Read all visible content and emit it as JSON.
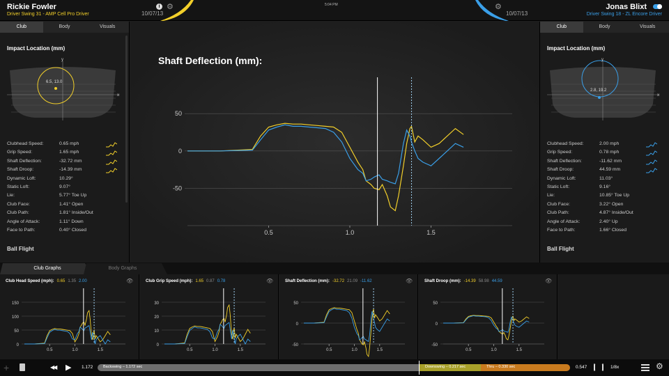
{
  "header": {
    "left_name": "Rickie Fowler",
    "left_swing": "Driver Swing 31 - AMP Cell Pro Driver",
    "left_date": "10/07/13",
    "time": "5:04 PM",
    "right_name": "Jonas Blixt",
    "right_swing": "Driver Swing 18 - ZL Encore Driver",
    "right_date": "10/07/13"
  },
  "colors": {
    "yellow": "#f2cf2a",
    "blue": "#3a9fe8"
  },
  "left": {
    "tabs": [
      "Club",
      "Body",
      "Visuals"
    ],
    "title": "Impact Location (mm)",
    "coord": "6.5, 13.0",
    "x_axis": "x",
    "y_axis": "y",
    "stats": [
      [
        "Clubhead Speed:",
        "0.65 mph"
      ],
      [
        "Grip Speed:",
        "1.65 mph"
      ],
      [
        "Shaft Deflection:",
        "-32.72 mm"
      ],
      [
        "Shaft Droop:",
        "-14.39 mm"
      ],
      [
        "Dynamic Loft:",
        "10.29°"
      ],
      [
        "Static Loft:",
        "9.07°"
      ],
      [
        "Lie:",
        "5.77° Toe Up"
      ],
      [
        "Club Face:",
        "1.41° Open"
      ],
      [
        "Club Path:",
        "1.81° Inside/Out"
      ],
      [
        "Angle of Attack:",
        "1.11° Down"
      ],
      [
        "Face to Path:",
        "0.40° Closed"
      ]
    ],
    "ball_flight": "Ball Flight"
  },
  "right": {
    "tabs": [
      "Club",
      "Body",
      "Visuals"
    ],
    "title": "Impact Location (mm)",
    "coord": "2.8, 19.2",
    "x_axis": "x",
    "y_axis": "y",
    "stats": [
      [
        "Clubhead Speed:",
        "2.00 mph"
      ],
      [
        "Grip Speed:",
        "0.78 mph"
      ],
      [
        "Shaft Deflection:",
        "-11.62 mm"
      ],
      [
        "Shaft Droop:",
        "44.59 mm"
      ],
      [
        "Dynamic Loft:",
        "11.03°"
      ],
      [
        "Static Loft:",
        "9.16°"
      ],
      [
        "Lie:",
        "10.85° Toe Up"
      ],
      [
        "Club Face:",
        "3.22° Open"
      ],
      [
        "Club Path:",
        "4.87° Inside/Out"
      ],
      [
        "Angle of Attack:",
        "2.40° Up"
      ],
      [
        "Face to Path:",
        "1.66° Closed"
      ]
    ],
    "ball_flight": "Ball Flight"
  },
  "main": {
    "title": "Shaft Deflection (mm):"
  },
  "chart_data": {
    "type": "line",
    "title": "Shaft Deflection (mm):",
    "xlabel": "",
    "ylabel": "",
    "xticks": [
      0.5,
      1.0,
      1.5
    ],
    "yticks": [
      50,
      0,
      -50
    ],
    "xlim": [
      0,
      2.0
    ],
    "ylim": [
      -100,
      80
    ],
    "grid": true,
    "markers": {
      "solid": 1.17,
      "dashed": 1.38
    },
    "series": [
      {
        "color": "#f2cf2a",
        "x": [
          0,
          0.2,
          0.4,
          0.45,
          0.5,
          0.55,
          0.6,
          0.65,
          0.7,
          0.75,
          0.8,
          0.85,
          0.9,
          0.95,
          1.0,
          1.05,
          1.08,
          1.1,
          1.13,
          1.15,
          1.18,
          1.2,
          1.23,
          1.25,
          1.28,
          1.3,
          1.33,
          1.35,
          1.37,
          1.38,
          1.4,
          1.42,
          1.45,
          1.5,
          1.55,
          1.6,
          1.65,
          1.7
        ],
        "values": [
          0,
          0,
          2,
          20,
          32,
          35,
          37,
          36,
          36,
          35,
          34,
          33,
          32,
          25,
          5,
          -15,
          -25,
          -40,
          -45,
          -50,
          -52,
          -45,
          -60,
          -75,
          -80,
          -60,
          -20,
          10,
          30,
          33,
          12,
          20,
          15,
          5,
          10,
          20,
          30,
          22
        ]
      },
      {
        "color": "#3a9fe8",
        "x": [
          0,
          0.2,
          0.4,
          0.45,
          0.5,
          0.55,
          0.6,
          0.65,
          0.7,
          0.75,
          0.8,
          0.85,
          0.9,
          0.95,
          1.0,
          1.05,
          1.08,
          1.1,
          1.13,
          1.15,
          1.18,
          1.2,
          1.23,
          1.25,
          1.28,
          1.3,
          1.33,
          1.35,
          1.37,
          1.38,
          1.4,
          1.42,
          1.45,
          1.5,
          1.55,
          1.6,
          1.65,
          1.7
        ],
        "values": [
          0,
          0,
          1,
          15,
          28,
          32,
          35,
          33,
          33,
          32,
          31,
          30,
          25,
          12,
          -10,
          -25,
          -30,
          -40,
          -38,
          -35,
          -32,
          -38,
          -40,
          -42,
          -44,
          -30,
          10,
          28,
          20,
          12,
          0,
          -10,
          -15,
          -20,
          -10,
          0,
          10,
          5
        ]
      }
    ]
  },
  "graph_tabs": [
    "Club Graphs",
    "Body Graphs"
  ],
  "graphs": [
    {
      "title": "Club Head Speed (mph):",
      "v1": "0.65",
      "v2": "1.35",
      "v3": "2.00",
      "yticks": [
        "150",
        "100",
        "50",
        "0"
      ],
      "xticks": [
        "0.5",
        "1.0",
        "1.5"
      ]
    },
    {
      "title": "Club Grip Speed (mph):",
      "v1": "1.65",
      "v2": "0.87",
      "v3": "0.78",
      "yticks": [
        "30",
        "20",
        "10",
        "0"
      ],
      "xticks": [
        "0.5",
        "1.0",
        "1.5"
      ]
    },
    {
      "title": "Shaft Deflection (mm):",
      "v1": "-32.72",
      "v2": "21.09",
      "v3": "-11.62",
      "yticks": [
        "50",
        "0",
        "-50"
      ],
      "xticks": [
        "0.5",
        "1.0",
        "1.5"
      ]
    },
    {
      "title": "Shaft Droop (mm):",
      "v1": "-14.39",
      "v2": "58.98",
      "v3": "44.59",
      "yticks": [
        "50",
        "0",
        "-50"
      ],
      "xticks": [
        "0.5",
        "1.0",
        "1.5"
      ]
    }
  ],
  "transport": {
    "start": "1.172",
    "end": "0.547",
    "rate": "1/8x",
    "seg1": "Backswing – 1.172 sec",
    "seg2": "Downswing – 0.217 sec",
    "seg3": "Thru – 0.330 sec"
  }
}
